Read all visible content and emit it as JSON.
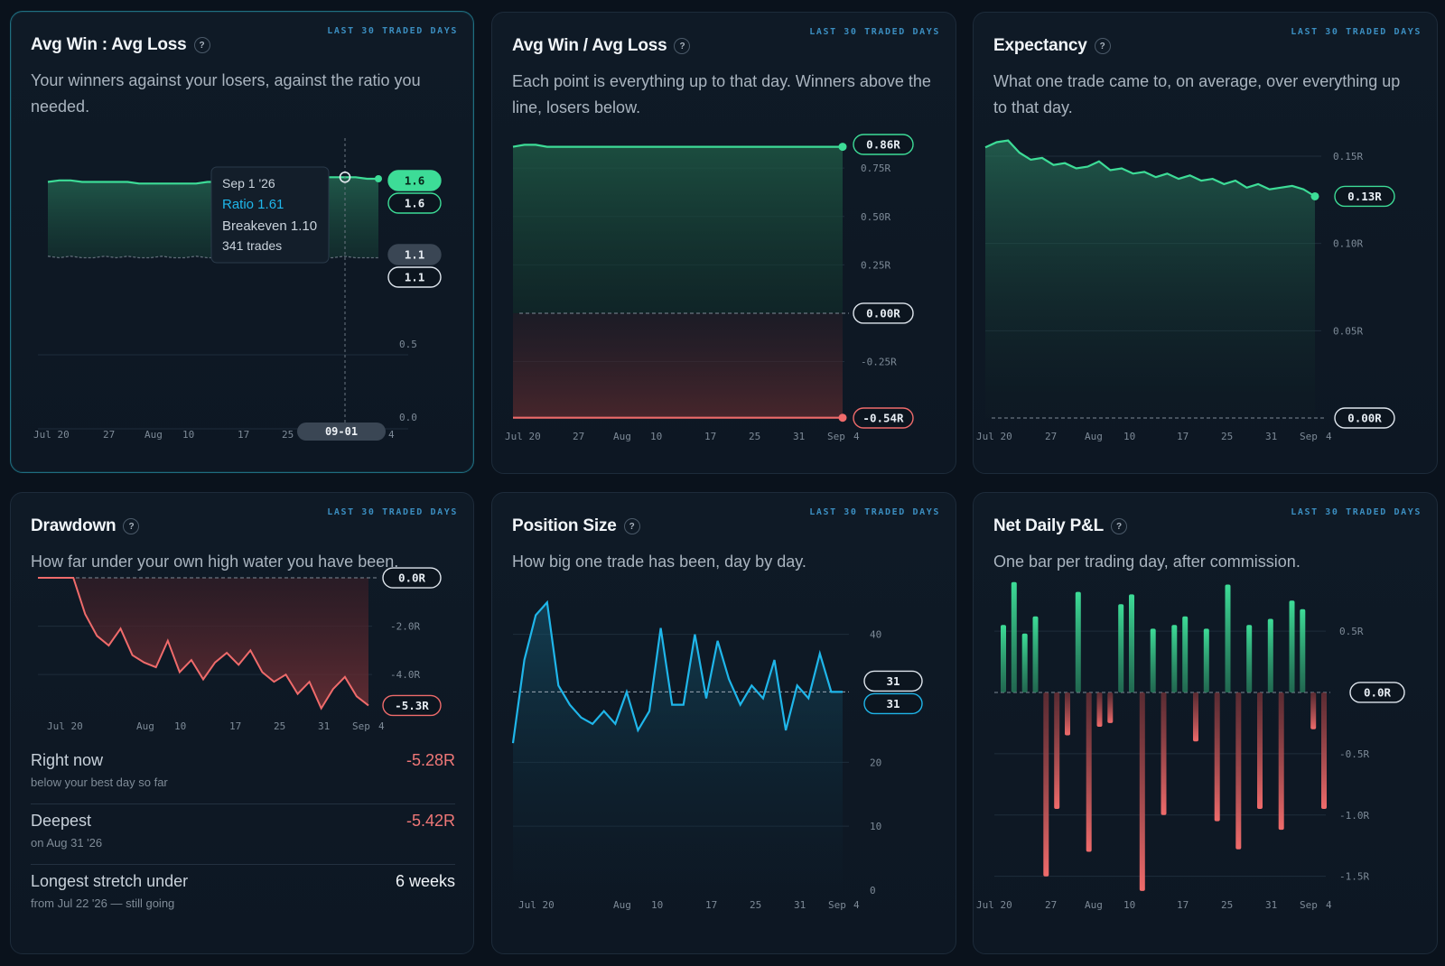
{
  "badge": "LAST 30 TRADED DAYS",
  "help_glyph": "?",
  "colors": {
    "green": "#3ddc97",
    "red": "#ef6b6b",
    "blue": "#1fb6ea",
    "grid": "#1f2d3b",
    "axis_text": "#7d8a97"
  },
  "cards": {
    "ratio": {
      "title": "Avg Win : Avg Loss",
      "desc": "Your winners against your losers, against the ratio you needed.",
      "xticks": [
        "Jul 20",
        "27",
        "Aug",
        "10",
        "17",
        "25",
        "4"
      ],
      "yticks": [
        "0.5",
        "0.0"
      ],
      "pills": [
        "1.6",
        "1.6",
        "1.1",
        "1.1"
      ],
      "tooltip": {
        "date": "Sep 1 '26",
        "ratio": "Ratio 1.61",
        "breakeven": "Breakeven 1.10",
        "trades": "341 trades"
      },
      "cursor_label": "09-01",
      "chart_data": {
        "type": "area",
        "series": [
          {
            "name": "Ratio",
            "values": [
              1.58,
              1.59,
              1.59,
              1.58,
              1.58,
              1.58,
              1.58,
              1.58,
              1.57,
              1.57,
              1.57,
              1.57,
              1.57,
              1.57,
              1.58,
              1.58,
              1.59,
              1.59,
              1.6,
              1.6,
              1.6,
              1.6,
              1.61,
              1.61,
              1.61,
              1.61,
              1.61,
              1.61,
              1.6,
              1.6
            ]
          },
          {
            "name": "Breakeven",
            "values": [
              1.11,
              1.1,
              1.11,
              1.1,
              1.1,
              1.11,
              1.1,
              1.11,
              1.1,
              1.1,
              1.11,
              1.1,
              1.1,
              1.11,
              1.1,
              1.1,
              1.11,
              1.1,
              1.1,
              1.11,
              1.1,
              1.1,
              1.1,
              1.11,
              1.1,
              1.1,
              1.11,
              1.1,
              1.1,
              1.1
            ]
          }
        ],
        "ylim": [
          0,
          1.8
        ]
      }
    },
    "winloss": {
      "title": "Avg Win / Avg Loss",
      "desc": "Each point is everything up to that day. Winners above the line, losers below.",
      "xticks": [
        "Jul 20",
        "27",
        "Aug",
        "10",
        "17",
        "25",
        "31",
        "Sep",
        "4"
      ],
      "yticks": [
        "0.75R",
        "0.50R",
        "0.25R",
        "-0.25R"
      ],
      "pills": [
        "0.86R",
        "0.00R",
        "-0.54R"
      ],
      "chart_data": {
        "type": "area",
        "series": [
          {
            "name": "Avg Win",
            "values": [
              0.86,
              0.87,
              0.87,
              0.86,
              0.86,
              0.86,
              0.86,
              0.86,
              0.86,
              0.86,
              0.86,
              0.86,
              0.86,
              0.86,
              0.86,
              0.86,
              0.86,
              0.86,
              0.86,
              0.86,
              0.86,
              0.86,
              0.86,
              0.86,
              0.86,
              0.86,
              0.86,
              0.86,
              0.86,
              0.86
            ]
          },
          {
            "name": "Avg Loss",
            "values": [
              -0.54,
              -0.54,
              -0.54,
              -0.54,
              -0.54,
              -0.54,
              -0.54,
              -0.54,
              -0.54,
              -0.54,
              -0.54,
              -0.54,
              -0.54,
              -0.54,
              -0.54,
              -0.54,
              -0.54,
              -0.54,
              -0.54,
              -0.54,
              -0.54,
              -0.54,
              -0.54,
              -0.54,
              -0.54,
              -0.54,
              -0.54,
              -0.54,
              -0.54,
              -0.54
            ]
          }
        ],
        "ylim": [
          -0.56,
          0.9
        ]
      }
    },
    "expectancy": {
      "title": "Expectancy",
      "desc": "What one trade came to, on average, over everything up to that day.",
      "xticks": [
        "Jul 20",
        "27",
        "Aug",
        "10",
        "17",
        "25",
        "31",
        "Sep",
        "4"
      ],
      "yticks": [
        "0.15R",
        "0.10R",
        "0.05R"
      ],
      "pills": [
        "0.13R",
        "0.00R"
      ],
      "chart_data": {
        "type": "area",
        "values": [
          0.155,
          0.158,
          0.159,
          0.152,
          0.148,
          0.149,
          0.145,
          0.146,
          0.143,
          0.144,
          0.147,
          0.142,
          0.143,
          0.14,
          0.141,
          0.138,
          0.14,
          0.137,
          0.139,
          0.136,
          0.137,
          0.134,
          0.136,
          0.132,
          0.134,
          0.131,
          0.132,
          0.133,
          0.131,
          0.127
        ],
        "ylim": [
          0,
          0.165
        ]
      }
    },
    "drawdown": {
      "title": "Drawdown",
      "desc": "How far under your own high water you have been.",
      "xticks": [
        "Jul 20",
        "Aug",
        "10",
        "17",
        "25",
        "31",
        "Sep",
        "4"
      ],
      "yticks": [
        "-2.0R",
        "-4.0R"
      ],
      "pills": [
        "0.0R",
        "-5.3R"
      ],
      "chart_data": {
        "type": "area",
        "values": [
          0,
          0,
          0,
          0,
          -1.5,
          -2.4,
          -2.8,
          -2.1,
          -3.2,
          -3.5,
          -3.7,
          -2.6,
          -3.9,
          -3.4,
          -4.2,
          -3.5,
          -3.1,
          -3.6,
          -3.0,
          -3.9,
          -4.3,
          -4.0,
          -4.8,
          -4.3,
          -5.4,
          -4.6,
          -4.1,
          -4.9,
          -5.28
        ],
        "ylim": [
          -5.6,
          0.3
        ]
      },
      "stats": [
        {
          "label": "Right now",
          "sub": "below your best day so far",
          "value": "-5.28R"
        },
        {
          "label": "Deepest",
          "sub": "on Aug 31 '26",
          "value": "-5.42R"
        },
        {
          "label": "Longest stretch under",
          "sub": "from Jul 22 '26 — still going",
          "value": "6 weeks"
        }
      ]
    },
    "position": {
      "title": "Position Size",
      "desc": "How big one trade has been, day by day.",
      "xticks": [
        "Jul 20",
        "Aug",
        "10",
        "17",
        "25",
        "31",
        "Sep",
        "4"
      ],
      "yticks": [
        "40",
        "20",
        "10",
        "0"
      ],
      "pills": [
        "31",
        "31"
      ],
      "chart_data": {
        "type": "area",
        "values": [
          23,
          36,
          43,
          45,
          32,
          29,
          27,
          26,
          28,
          26,
          31,
          25,
          28,
          41,
          29,
          29,
          40,
          30,
          39,
          33,
          29,
          32,
          30,
          36,
          25,
          32,
          30,
          37,
          31,
          31
        ],
        "ylim": [
          0,
          48
        ]
      }
    },
    "pnl": {
      "title": "Net Daily P&L",
      "desc": "One bar per trading day, after commission.",
      "xticks": [
        "Jul 20",
        "27",
        "Aug",
        "10",
        "17",
        "25",
        "31",
        "Sep",
        "4"
      ],
      "yticks": [
        "0.5R",
        "-0.5R",
        "-1.0R",
        "-1.5R"
      ],
      "pills": [
        "0.0R"
      ],
      "chart_data": {
        "type": "bar",
        "values": [
          0.55,
          0.9,
          0.48,
          0.62,
          -1.5,
          -0.95,
          -0.35,
          0.82,
          -1.3,
          -0.28,
          -0.25,
          0.72,
          0.8,
          -1.62,
          0.52,
          -1.0,
          0.55,
          0.62,
          -0.4,
          0.52,
          -1.05,
          0.88,
          -1.28,
          0.55,
          -0.95,
          0.6,
          -1.12,
          0.75,
          0.68,
          -0.3,
          -0.95
        ],
        "ylim": [
          -1.65,
          0.95
        ]
      }
    }
  }
}
